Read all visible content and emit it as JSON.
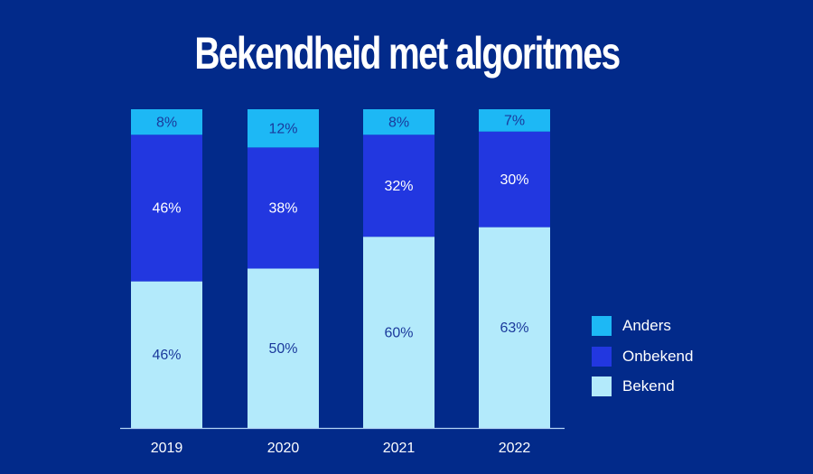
{
  "chart_data": {
    "type": "bar",
    "stacked": true,
    "title": "Bekendheid met algoritmes",
    "categories": [
      "2019",
      "2020",
      "2021",
      "2022"
    ],
    "series": [
      {
        "name": "Bekend",
        "values": [
          46,
          50,
          60,
          63
        ],
        "color": "#b3eafb",
        "label_color": "#1b3a9c"
      },
      {
        "name": "Onbekend",
        "values": [
          46,
          38,
          32,
          30
        ],
        "color": "#2237e0",
        "label_color": "#ffffff"
      },
      {
        "name": "Anders",
        "values": [
          8,
          12,
          8,
          7
        ],
        "color": "#1db8f5",
        "label_color": "#1b3a9c"
      }
    ],
    "value_suffix": "%",
    "ylim": [
      0,
      100
    ],
    "grid": false,
    "legend_position": "right",
    "legend_order": [
      "Anders",
      "Onbekend",
      "Bekend"
    ],
    "background": "#022a8a"
  }
}
